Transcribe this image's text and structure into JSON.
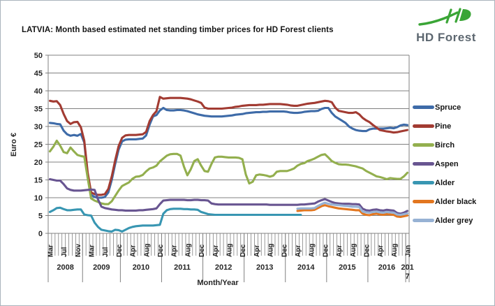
{
  "logo": {
    "text": "HD Forest"
  },
  "chart_data": {
    "type": "line",
    "title": "LATVIA: Month based estimated net standing timber prices for HD Forest clients",
    "xlabel": "Month/Year",
    "ylabel": "Euro €",
    "ylim": [
      0,
      50
    ],
    "yticks": [
      0,
      5,
      10,
      15,
      20,
      25,
      30,
      35,
      40,
      45,
      50
    ],
    "grid": true,
    "legend_position": "right",
    "n_points": 105,
    "month_ticks": {
      "indices": [
        0,
        4,
        8,
        12,
        16,
        20,
        24,
        28,
        32,
        36,
        40,
        44,
        48,
        52,
        56,
        60,
        64,
        68,
        72,
        76,
        80,
        84,
        88,
        92,
        96,
        100,
        104
      ],
      "labels": [
        "Mar",
        "Jul",
        "Nov",
        "Mar",
        "Jul",
        "Dec",
        "Apr",
        "Aug",
        "Dec",
        "Apr",
        "Aug",
        "Dec",
        "Apr",
        "Aug",
        "Dec",
        "Apr",
        "Aug",
        "Dec",
        "Apr",
        "Aug",
        "Dec",
        "Apr",
        "Aug",
        "Dec",
        "Apr",
        "Aug",
        "Jan"
      ]
    },
    "year_bands": [
      {
        "label": "2008",
        "from": 0,
        "to": 10,
        "wrap": false
      },
      {
        "label": "2009",
        "from": 10,
        "to": 21,
        "wrap": false
      },
      {
        "label": "2010",
        "from": 21,
        "to": 33,
        "wrap": false
      },
      {
        "label": "2011",
        "from": 33,
        "to": 45,
        "wrap": false
      },
      {
        "label": "2012",
        "from": 45,
        "to": 57,
        "wrap": false
      },
      {
        "label": "2013",
        "from": 57,
        "to": 69,
        "wrap": false
      },
      {
        "label": "2014",
        "from": 69,
        "to": 81,
        "wrap": false
      },
      {
        "label": "2015",
        "from": 81,
        "to": 93,
        "wrap": false
      },
      {
        "label": "2016",
        "from": 93,
        "to": 104,
        "wrap": false
      },
      {
        "label": "2017",
        "from": 104,
        "to": 105,
        "wrap": true
      }
    ],
    "colors": {
      "grid": "#808080",
      "axis": "#808080",
      "text": "#262626",
      "logo_green": "#3aa536"
    },
    "series": [
      {
        "name": "Spruce",
        "color": "#3E6BA8",
        "values": [
          31,
          30.9,
          30.7,
          30.6,
          28.8,
          27.8,
          27.4,
          27.6,
          27.4,
          27.9,
          25.5,
          16,
          10.8,
          10.2,
          10,
          10,
          10.2,
          11.5,
          15,
          19.5,
          23.5,
          25.8,
          26.3,
          26.4,
          26.4,
          26.4,
          26.5,
          26.6,
          27.5,
          30.5,
          32.8,
          33.2,
          34.5,
          35.2,
          34.6,
          34.5,
          34.5,
          34.6,
          34.6,
          34.5,
          34.3,
          34,
          33.7,
          33.4,
          33.2,
          33,
          32.9,
          32.8,
          32.8,
          32.8,
          32.8,
          32.9,
          33,
          33.1,
          33.3,
          33.4,
          33.5,
          33.7,
          33.8,
          33.9,
          34,
          34,
          34.1,
          34.1,
          34.2,
          34.2,
          34.2,
          34.2,
          34.2,
          34.1,
          33.9,
          33.8,
          33.8,
          33.9,
          34.1,
          34.2,
          34.3,
          34.3,
          34.4,
          34.9,
          35.2,
          35.2,
          33.8,
          32.8,
          32.2,
          31.6,
          31,
          30,
          29.4,
          29,
          28.8,
          28.7,
          28.7,
          29.2,
          29.4,
          29.4,
          29.4,
          29.4,
          29.5,
          29.6,
          29.5,
          29.8,
          30.3,
          30.5,
          30.4
        ]
      },
      {
        "name": "Pine",
        "color": "#A23B32",
        "values": [
          37.2,
          37,
          37.1,
          36,
          33.5,
          31.5,
          30.7,
          31.2,
          31.3,
          29.8,
          26,
          17,
          11.5,
          11,
          10.8,
          10.8,
          11,
          12.5,
          16,
          20.5,
          24.5,
          26.8,
          27.5,
          27.6,
          27.6,
          27.6,
          27.7,
          27.8,
          28.5,
          31.5,
          33.2,
          34.3,
          38.3,
          37.8,
          37.9,
          38,
          38,
          38,
          38,
          37.9,
          37.8,
          37.6,
          37.3,
          37,
          36.6,
          35.3,
          35,
          35,
          35,
          35,
          35,
          35.1,
          35.2,
          35.3,
          35.5,
          35.6,
          35.8,
          35.9,
          36,
          36,
          36,
          36.1,
          36.1,
          36.2,
          36.3,
          36.3,
          36.3,
          36.3,
          36.2,
          36.1,
          35.9,
          35.8,
          35.8,
          36,
          36.2,
          36.4,
          36.5,
          36.6,
          36.8,
          37,
          37.2,
          37.1,
          36.8,
          35.3,
          34.4,
          34.2,
          34,
          33.8,
          33.8,
          34,
          33.4,
          32.4,
          31.7,
          31.2,
          30.4,
          29.7,
          29,
          28.8,
          28.6,
          28.5,
          28.3,
          28.4,
          28.6,
          28.8,
          29
        ]
      },
      {
        "name": "Birch",
        "color": "#93AF4E",
        "values": [
          23,
          24.3,
          26,
          24.6,
          22.8,
          22.5,
          24.1,
          23,
          22,
          21.7,
          21.5,
          15.5,
          9.8,
          9.2,
          8.8,
          8.4,
          8.2,
          8.2,
          9,
          10.5,
          12,
          13.3,
          13.8,
          14.3,
          15.3,
          15.9,
          16,
          16.4,
          17.4,
          18.2,
          18.5,
          19,
          20.2,
          21,
          21.8,
          22.2,
          22.3,
          22.3,
          21.8,
          18.7,
          16.3,
          18,
          20.3,
          20.8,
          19,
          17.5,
          17.3,
          19.5,
          21.3,
          21.5,
          21.5,
          21.4,
          21.3,
          21.3,
          21.3,
          21.2,
          20.8,
          16.5,
          14,
          14.5,
          16.3,
          16.5,
          16.4,
          16.2,
          15.9,
          16.2,
          17.3,
          17.5,
          17.5,
          17.5,
          17.8,
          18.2,
          19,
          19.5,
          19.7,
          20.3,
          20.6,
          21,
          21.5,
          22,
          22.2,
          21.3,
          20.3,
          19.8,
          19.4,
          19.3,
          19.3,
          19.2,
          19,
          18.8,
          18.5,
          18.2,
          17.5,
          17,
          16.5,
          16,
          15.8,
          15.5,
          15.2,
          15.5,
          15.4,
          15.3,
          15.3,
          16,
          17
        ]
      },
      {
        "name": "Aspen",
        "color": "#685591",
        "values": [
          15.2,
          15,
          14.8,
          14.8,
          13.8,
          12.6,
          12.2,
          12,
          12,
          12,
          12.1,
          12.2,
          12.3,
          12.2,
          9.5,
          7.5,
          7.1,
          6.9,
          6.7,
          6.6,
          6.5,
          6.5,
          6.4,
          6.4,
          6.4,
          6.4,
          6.5,
          6.5,
          6.6,
          6.7,
          6.8,
          7,
          8.2,
          9.2,
          9.3,
          9.4,
          9.4,
          9.4,
          9.4,
          9.4,
          9.3,
          9.3,
          9.4,
          9.4,
          9.3,
          9.3,
          9.2,
          8.4,
          8.2,
          8.1,
          8.1,
          8.1,
          8.1,
          8.1,
          8.1,
          8.1,
          8.1,
          8.1,
          8.1,
          8.1,
          8.1,
          8.1,
          8.1,
          8.1,
          8,
          8,
          8,
          8,
          8,
          8,
          8,
          8,
          8,
          8.1,
          8.1,
          8.2,
          8.3,
          8.4,
          8.9,
          9.3,
          9.6,
          9.2,
          8.8,
          8.5,
          8.4,
          8.3,
          8.3,
          8.3,
          8.2,
          8.2,
          8.1,
          6.9,
          6.5,
          6.4,
          6.6,
          6.7,
          6.5,
          6.4,
          6.6,
          6.5,
          6.4,
          5.7,
          5.5,
          5.8,
          6.3
        ]
      },
      {
        "name": "Alder",
        "color": "#3896B2",
        "values": [
          6,
          6.5,
          7.1,
          7.2,
          6.8,
          6.5,
          6.5,
          6.6,
          6.7,
          6.7,
          5.3,
          5.1,
          5,
          3,
          1.8,
          1,
          0.8,
          0.6,
          0.5,
          1,
          0.9,
          0.5,
          1,
          1.5,
          1.8,
          2,
          2.1,
          2.2,
          2.2,
          2.2,
          2.2,
          2.3,
          2.4,
          5.5,
          6.5,
          6.8,
          6.9,
          6.9,
          6.9,
          6.8,
          6.8,
          6.7,
          6.7,
          6.6,
          6,
          5.7,
          5.4,
          5.3,
          5.2,
          5.2,
          5.2,
          5.2,
          5.2,
          5.2,
          5.2,
          5.2,
          5.2,
          5.2,
          5.2,
          5.2,
          5.2,
          5.2,
          5.2,
          5.2,
          5.2,
          5.2,
          5.2,
          5.2,
          5.2,
          5.2,
          5.2,
          5.2,
          5.2,
          5.2,
          null,
          null,
          null,
          null,
          null,
          null,
          null,
          null,
          null,
          null,
          null,
          null,
          null,
          null,
          null,
          null,
          null,
          null,
          null,
          null,
          null,
          null,
          null,
          null,
          null,
          null,
          null,
          null,
          null,
          null,
          null
        ]
      },
      {
        "name": "Alder black",
        "color": "#E2761F",
        "values": [
          null,
          null,
          null,
          null,
          null,
          null,
          null,
          null,
          null,
          null,
          null,
          null,
          null,
          null,
          null,
          null,
          null,
          null,
          null,
          null,
          null,
          null,
          null,
          null,
          null,
          null,
          null,
          null,
          null,
          null,
          null,
          null,
          null,
          null,
          null,
          null,
          null,
          null,
          null,
          null,
          null,
          null,
          null,
          null,
          null,
          null,
          null,
          null,
          null,
          null,
          null,
          null,
          null,
          null,
          null,
          null,
          null,
          null,
          null,
          null,
          null,
          null,
          null,
          null,
          null,
          null,
          null,
          null,
          null,
          null,
          null,
          null,
          6.3,
          6.4,
          6.5,
          6.5,
          6.5,
          6.6,
          7.1,
          7.6,
          7.9,
          7.6,
          7.4,
          7.2,
          7,
          6.9,
          6.8,
          6.7,
          6.6,
          6.5,
          6.5,
          5.5,
          5.2,
          5.1,
          5.4,
          5.5,
          5.3,
          5.2,
          5.4,
          5.3,
          5.2,
          4.7,
          4.6,
          4.8,
          5
        ]
      },
      {
        "name": "Alder grey",
        "color": "#97B2D4",
        "values": [
          null,
          null,
          null,
          null,
          null,
          null,
          null,
          null,
          null,
          null,
          null,
          null,
          null,
          null,
          null,
          null,
          null,
          null,
          null,
          null,
          null,
          null,
          null,
          null,
          null,
          null,
          null,
          null,
          null,
          null,
          null,
          null,
          null,
          null,
          null,
          null,
          null,
          null,
          null,
          null,
          null,
          null,
          null,
          null,
          null,
          null,
          null,
          null,
          null,
          null,
          null,
          null,
          null,
          null,
          null,
          null,
          null,
          null,
          null,
          null,
          null,
          null,
          null,
          null,
          null,
          null,
          null,
          null,
          null,
          null,
          null,
          null,
          6.9,
          7,
          7,
          7,
          7,
          7.1,
          7.7,
          8.2,
          8.6,
          8.3,
          8.1,
          8,
          7.9,
          7.8,
          7.7,
          7.6,
          7.5,
          7.5,
          7.4,
          6.1,
          5.9,
          5.8,
          6,
          6.1,
          5.9,
          5.8,
          6,
          5.9,
          5.8,
          5.3,
          5.2,
          5.4,
          5.6
        ]
      }
    ]
  }
}
